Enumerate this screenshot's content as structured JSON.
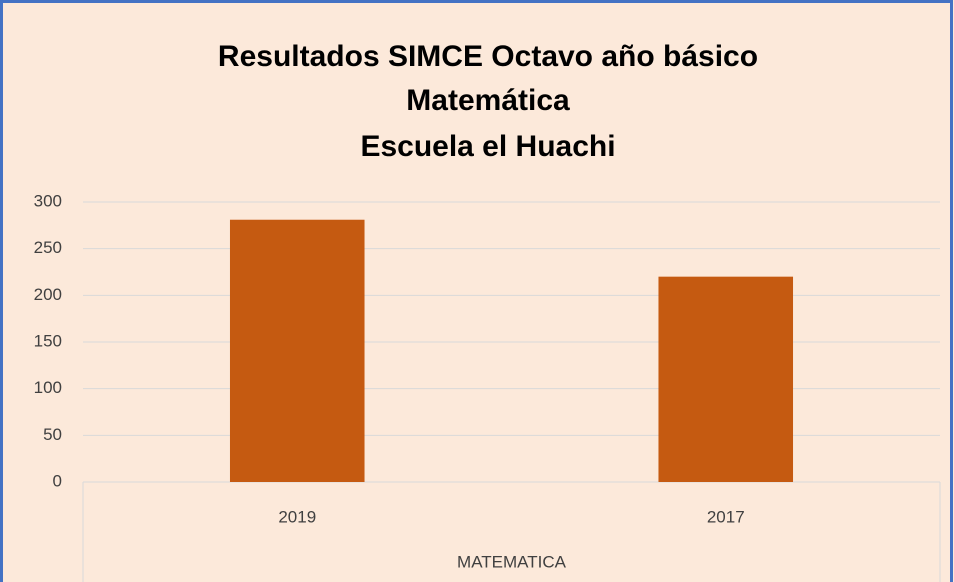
{
  "chart_data": {
    "type": "bar",
    "title": [
      "Resultados SIMCE Octavo año básico",
      "Matemática",
      "Escuela el Huachi"
    ],
    "categories": [
      "2019",
      "2017"
    ],
    "values": [
      281,
      220
    ],
    "color": "#c55a11",
    "xlabel": "MATEMATICA",
    "ylim": [
      0,
      300
    ],
    "yticks": [
      0,
      50,
      100,
      150,
      200,
      250,
      300
    ],
    "grid": true
  }
}
